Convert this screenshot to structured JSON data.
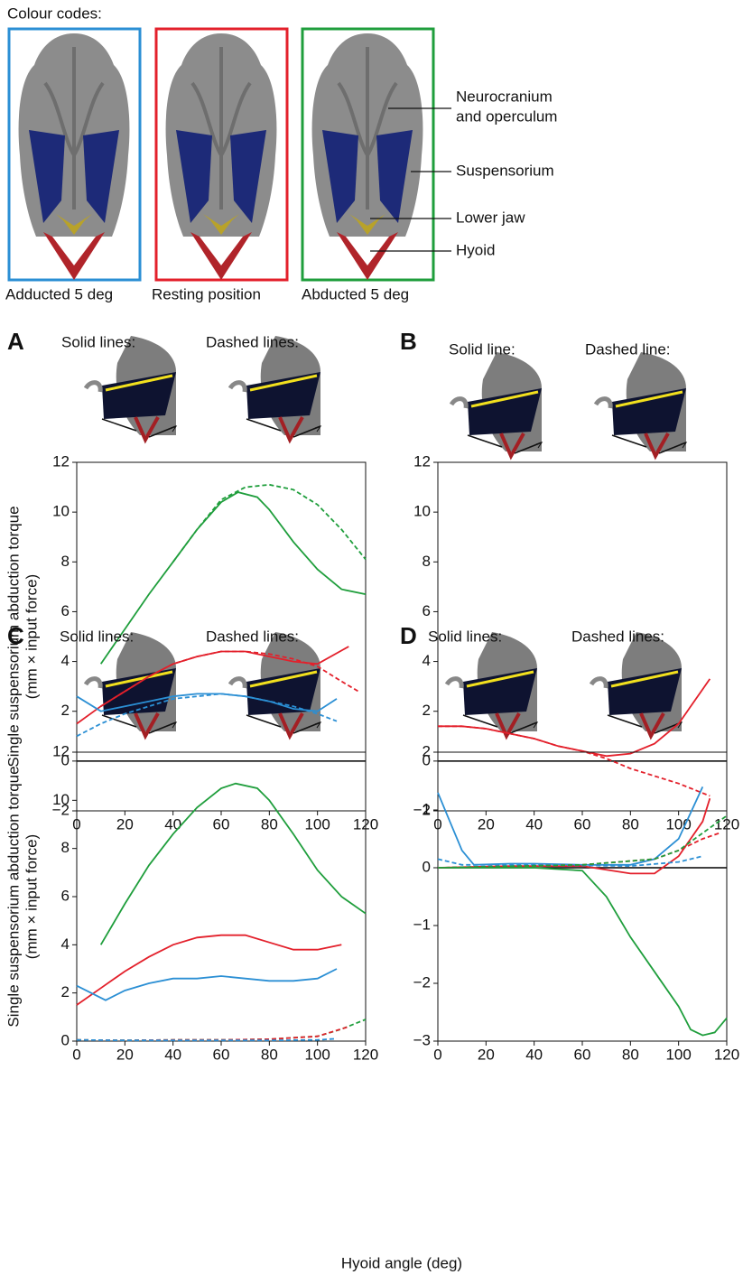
{
  "colour_codes": {
    "title": "Colour codes:",
    "labels": [
      "Adducted 5 deg",
      "Resting position",
      "Abducted 5 deg"
    ],
    "parts": [
      "Neurocranium",
      "and operculum",
      "Suspensorium",
      "Lower jaw",
      "Hyoid"
    ]
  },
  "x_label": "Hyoid angle (deg)",
  "chart_data": [
    {
      "type": "line",
      "title": "A",
      "annotations": [
        "Solid lines:",
        "Dashed lines:"
      ],
      "ylabel": [
        "Single suspensorium abduction torque",
        "(mm × input force)"
      ],
      "xlim": [
        0,
        120
      ],
      "ylim": [
        -2,
        12
      ],
      "xticks": [
        0,
        20,
        40,
        60,
        80,
        100,
        120
      ],
      "yticks": [
        {
          "value": -2,
          "label": "−2"
        },
        0,
        2,
        4,
        6,
        8,
        10,
        12
      ],
      "series": [
        {
          "color": "#1f9e3c",
          "style": "solid",
          "x": [
            10,
            20,
            30,
            40,
            50,
            60,
            67,
            75,
            80,
            90,
            100,
            110,
            120
          ],
          "values": [
            3.9,
            5.3,
            6.7,
            8.0,
            9.3,
            10.4,
            10.8,
            10.6,
            10.1,
            8.8,
            7.7,
            6.9,
            6.7
          ]
        },
        {
          "color": "#1f9e3c",
          "style": "dashed",
          "x": [
            40,
            50,
            60,
            70,
            80,
            90,
            100,
            110,
            120
          ],
          "values": [
            8.0,
            9.3,
            10.5,
            11.0,
            11.1,
            10.9,
            10.3,
            9.3,
            8.1
          ]
        },
        {
          "color": "#e3202b",
          "style": "solid",
          "x": [
            0,
            10,
            20,
            30,
            40,
            50,
            60,
            70,
            80,
            90,
            100,
            113
          ],
          "values": [
            1.5,
            2.2,
            2.8,
            3.4,
            3.9,
            4.2,
            4.4,
            4.4,
            4.2,
            4.0,
            3.9,
            4.6
          ]
        },
        {
          "color": "#e3202b",
          "style": "dashed",
          "x": [
            10,
            20,
            30,
            40,
            50,
            60,
            70,
            80,
            90,
            100,
            110,
            117
          ],
          "values": [
            2.2,
            2.8,
            3.4,
            3.9,
            4.2,
            4.4,
            4.4,
            4.3,
            4.1,
            3.8,
            3.2,
            2.8
          ]
        },
        {
          "color": "#2b8fd4",
          "style": "solid",
          "x": [
            0,
            10,
            20,
            30,
            40,
            50,
            60,
            70,
            80,
            90,
            100,
            108
          ],
          "values": [
            2.6,
            2.0,
            2.2,
            2.4,
            2.6,
            2.7,
            2.7,
            2.6,
            2.4,
            2.1,
            2.0,
            2.5
          ]
        },
        {
          "color": "#2b8fd4",
          "style": "dashed",
          "x": [
            0,
            10,
            20,
            30,
            40,
            50,
            60,
            70,
            80,
            90,
            100,
            108
          ],
          "values": [
            1.0,
            1.5,
            1.9,
            2.2,
            2.5,
            2.6,
            2.7,
            2.6,
            2.4,
            2.2,
            1.9,
            1.6
          ]
        }
      ]
    },
    {
      "type": "line",
      "title": "B",
      "annotations": [
        "Solid line:",
        "Dashed line:"
      ],
      "xlim": [
        0,
        120
      ],
      "ylim": [
        -2,
        12
      ],
      "xticks": [
        0,
        20,
        40,
        60,
        80,
        100,
        120
      ],
      "yticks": [
        {
          "value": -2,
          "label": "−2"
        },
        0,
        2,
        4,
        6,
        8,
        10,
        12
      ],
      "series": [
        {
          "color": "#e3202b",
          "style": "solid",
          "x": [
            0,
            10,
            20,
            30,
            40,
            50,
            60,
            70,
            80,
            90,
            100,
            113
          ],
          "values": [
            1.4,
            1.4,
            1.3,
            1.1,
            0.9,
            0.6,
            0.4,
            0.2,
            0.3,
            0.7,
            1.5,
            3.3
          ]
        },
        {
          "color": "#e3202b",
          "style": "dashed",
          "x": [
            0,
            10,
            20,
            30,
            40,
            50,
            60,
            70,
            80,
            90,
            100,
            113
          ],
          "values": [
            1.4,
            1.4,
            1.3,
            1.1,
            0.9,
            0.6,
            0.4,
            0.1,
            -0.3,
            -0.6,
            -0.9,
            -1.4
          ]
        }
      ]
    },
    {
      "type": "line",
      "title": "C",
      "annotations": [
        "Solid lines:",
        "Dashed lines:"
      ],
      "ylabel": [
        "Single suspensorium abduction torque",
        "(mm × input force)"
      ],
      "xlim": [
        0,
        120
      ],
      "ylim": [
        0,
        12
      ],
      "xticks": [
        0,
        20,
        40,
        60,
        80,
        100,
        120
      ],
      "yticks": [
        0,
        2,
        4,
        6,
        8,
        10,
        12
      ],
      "series": [
        {
          "color": "#1f9e3c",
          "style": "solid",
          "x": [
            10,
            20,
            30,
            40,
            50,
            60,
            66,
            75,
            80,
            90,
            100,
            110,
            120
          ],
          "values": [
            4.0,
            5.7,
            7.3,
            8.6,
            9.7,
            10.5,
            10.7,
            10.5,
            10.0,
            8.6,
            7.1,
            6.0,
            5.3
          ]
        },
        {
          "color": "#e3202b",
          "style": "solid",
          "x": [
            0,
            10,
            20,
            30,
            40,
            50,
            60,
            70,
            80,
            90,
            100,
            110
          ],
          "values": [
            1.5,
            2.2,
            2.9,
            3.5,
            4.0,
            4.3,
            4.4,
            4.4,
            4.1,
            3.8,
            3.8,
            4.0
          ]
        },
        {
          "color": "#2b8fd4",
          "style": "solid",
          "x": [
            0,
            12,
            20,
            30,
            40,
            50,
            60,
            70,
            80,
            90,
            100,
            108
          ],
          "values": [
            2.3,
            1.7,
            2.1,
            2.4,
            2.6,
            2.6,
            2.7,
            2.6,
            2.5,
            2.5,
            2.6,
            3.0
          ]
        },
        {
          "color": "#1f9e3c",
          "style": "dashed",
          "x": [
            0,
            20,
            40,
            60,
            80,
            100,
            110,
            120
          ],
          "values": [
            0.05,
            0.03,
            0.05,
            0.05,
            0.08,
            0.2,
            0.5,
            0.9
          ]
        },
        {
          "color": "#e3202b",
          "style": "dashed",
          "x": [
            0,
            20,
            40,
            60,
            80,
            100,
            113
          ],
          "values": [
            0.05,
            0.03,
            0.05,
            0.05,
            0.08,
            0.2,
            0.6
          ]
        },
        {
          "color": "#2b8fd4",
          "style": "dashed",
          "x": [
            0,
            20,
            40,
            60,
            80,
            100,
            108
          ],
          "values": [
            0.05,
            0.03,
            0.03,
            0.03,
            0.03,
            0.05,
            0.1
          ]
        }
      ]
    },
    {
      "type": "line",
      "title": "D",
      "annotations": [
        "Solid lines:",
        "Dashed lines:"
      ],
      "xlim": [
        0,
        120
      ],
      "ylim": [
        -3,
        2
      ],
      "xticks": [
        0,
        20,
        40,
        60,
        80,
        100,
        120
      ],
      "yticks": [
        {
          "value": -3,
          "label": "−3"
        },
        {
          "value": -2,
          "label": "−2"
        },
        {
          "value": -1,
          "label": "−1"
        },
        0,
        1,
        2
      ],
      "series": [
        {
          "color": "#2b8fd4",
          "style": "solid",
          "x": [
            0,
            5,
            10,
            15,
            30,
            40,
            60,
            80,
            90,
            100,
            110
          ],
          "values": [
            1.3,
            0.8,
            0.3,
            0.05,
            0.07,
            0.07,
            0.05,
            0.05,
            0.15,
            0.5,
            1.4
          ]
        },
        {
          "color": "#e3202b",
          "style": "solid",
          "x": [
            0,
            30,
            60,
            80,
            90,
            100,
            110,
            113
          ],
          "values": [
            0,
            0.03,
            0.03,
            -0.1,
            -0.1,
            0.2,
            0.8,
            1.2
          ]
        },
        {
          "color": "#1f9e3c",
          "style": "solid",
          "x": [
            0,
            40,
            60,
            70,
            80,
            90,
            100,
            105,
            110,
            115,
            120
          ],
          "values": [
            0,
            0,
            -0.05,
            -0.5,
            -1.2,
            -1.8,
            -2.4,
            -2.8,
            -2.9,
            -2.85,
            -2.6
          ]
        },
        {
          "color": "#2b8fd4",
          "style": "dashed",
          "x": [
            0,
            10,
            40,
            80,
            100,
            110
          ],
          "values": [
            0.15,
            0.05,
            0.05,
            0.03,
            0.1,
            0.2
          ]
        },
        {
          "color": "#e3202b",
          "style": "dashed",
          "x": [
            0,
            60,
            90,
            100,
            110,
            117
          ],
          "values": [
            0,
            0.05,
            0.15,
            0.3,
            0.5,
            0.6
          ]
        },
        {
          "color": "#1f9e3c",
          "style": "dashed",
          "x": [
            0,
            60,
            90,
            100,
            110,
            120
          ],
          "values": [
            0,
            0.05,
            0.15,
            0.3,
            0.6,
            0.9
          ]
        }
      ]
    }
  ]
}
